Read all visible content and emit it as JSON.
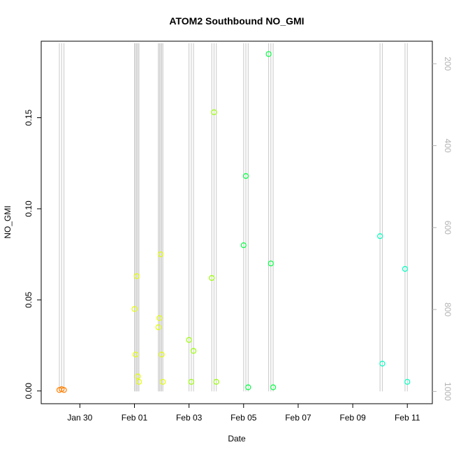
{
  "chart_data": {
    "type": "scatter",
    "title": "ATOM2 Southbound NO_GMI",
    "xlabel": "Date",
    "ylabel": "NO_GMI",
    "xlim": [
      "2017-01-28 14:00",
      "2017-02-11 22:00"
    ],
    "ylim": [
      -0.007,
      0.192
    ],
    "x_ticks": [
      {
        "date": "2017-01-30",
        "label": "Jan 30"
      },
      {
        "date": "2017-02-01",
        "label": "Feb 01"
      },
      {
        "date": "2017-02-03",
        "label": "Feb 03"
      },
      {
        "date": "2017-02-05",
        "label": "Feb 05"
      },
      {
        "date": "2017-02-07",
        "label": "Feb 07"
      },
      {
        "date": "2017-02-09",
        "label": "Feb 09"
      },
      {
        "date": "2017-02-11",
        "label": "Feb 11"
      }
    ],
    "y_ticks": [
      0.0,
      0.05,
      0.1,
      0.15
    ],
    "y_tick_labels": [
      "0.00",
      "0.05",
      "0.10",
      "0.15"
    ],
    "right_axis": {
      "description": "pressure (hPa), reversed",
      "range": [
        1030,
        145
      ],
      "ticks": [
        200,
        400,
        600,
        800,
        1000
      ],
      "tick_labels": [
        "200",
        "400",
        "600",
        "800",
        "1000"
      ],
      "color": "#b3b3b3"
    },
    "grid": false,
    "series": [
      {
        "color": "#ff7f00",
        "points": [
          {
            "x": "2017-01-29 06:00",
            "y": 0.0005
          },
          {
            "x": "2017-01-29 08:00",
            "y": 0.001
          },
          {
            "x": "2017-01-29 10:00",
            "y": 0.0005
          }
        ]
      },
      {
        "color": "#e5ff00",
        "points": [
          {
            "x": "2017-02-01 00:00",
            "y": 0.045
          },
          {
            "x": "2017-02-01 01:00",
            "y": 0.02
          },
          {
            "x": "2017-02-01 02:00",
            "y": 0.063
          },
          {
            "x": "2017-02-01 03:00",
            "y": 0.008
          },
          {
            "x": "2017-02-01 04:00",
            "y": 0.005
          },
          {
            "x": "2017-02-01 21:00",
            "y": 0.035
          },
          {
            "x": "2017-02-01 22:00",
            "y": 0.04
          },
          {
            "x": "2017-02-01 23:00",
            "y": 0.075
          },
          {
            "x": "2017-02-02 00:00",
            "y": 0.02
          },
          {
            "x": "2017-02-02 01:00",
            "y": 0.005
          }
        ]
      },
      {
        "color": "#99ff00",
        "points": [
          {
            "x": "2017-02-03 00:00",
            "y": 0.028
          },
          {
            "x": "2017-02-03 02:00",
            "y": 0.005
          },
          {
            "x": "2017-02-03 04:00",
            "y": 0.022
          },
          {
            "x": "2017-02-03 20:00",
            "y": 0.062
          },
          {
            "x": "2017-02-03 22:00",
            "y": 0.153
          },
          {
            "x": "2017-02-04 00:00",
            "y": 0.005
          }
        ]
      },
      {
        "color": "#00ff40",
        "points": [
          {
            "x": "2017-02-05 00:00",
            "y": 0.08
          },
          {
            "x": "2017-02-05 02:00",
            "y": 0.118
          },
          {
            "x": "2017-02-05 04:00",
            "y": 0.002
          },
          {
            "x": "2017-02-05 22:00",
            "y": 0.185
          },
          {
            "x": "2017-02-06 00:00",
            "y": 0.07
          },
          {
            "x": "2017-02-06 02:00",
            "y": 0.002
          }
        ]
      },
      {
        "color": "#00ffbf",
        "points": [
          {
            "x": "2017-02-10 00:00",
            "y": 0.085
          },
          {
            "x": "2017-02-10 02:00",
            "y": 0.015
          },
          {
            "x": "2017-02-10 22:00",
            "y": 0.067
          },
          {
            "x": "2017-02-11 00:00",
            "y": 0.005
          }
        ]
      }
    ]
  }
}
